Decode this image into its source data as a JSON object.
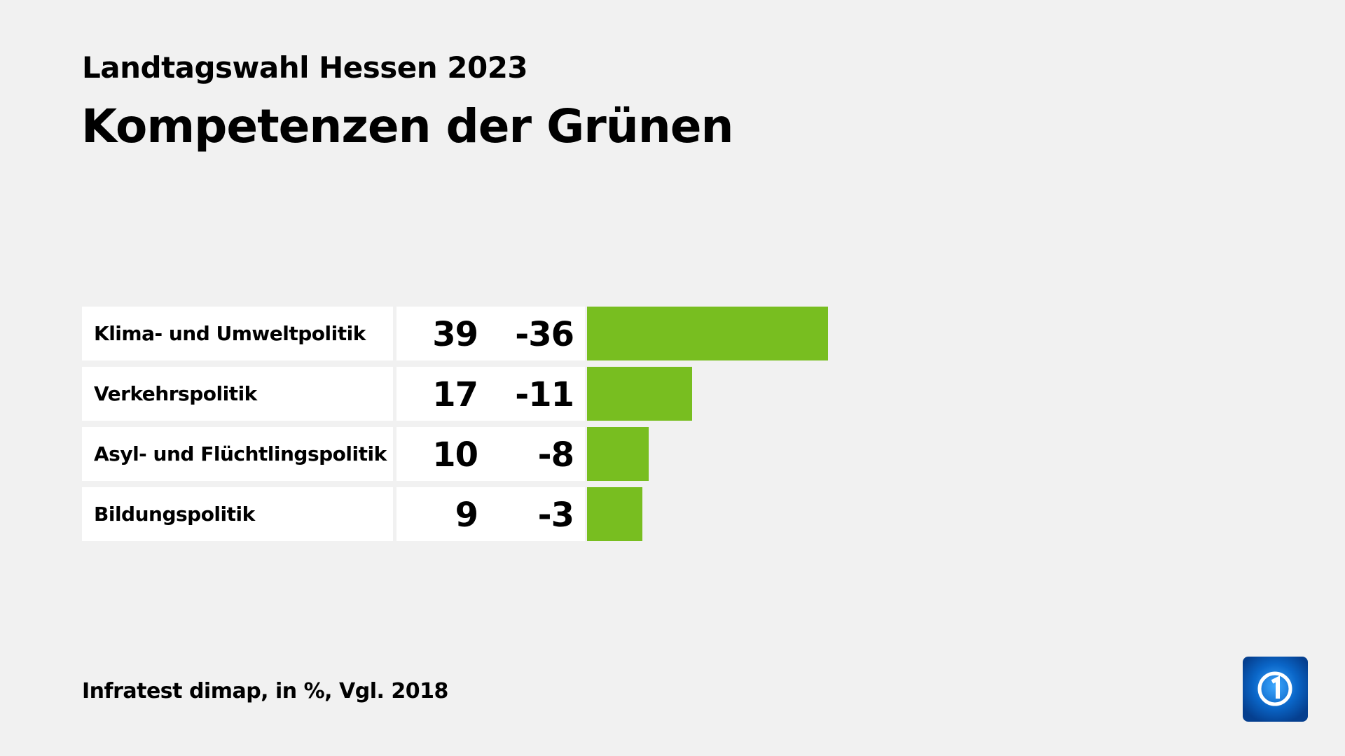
{
  "header": {
    "subtitle": "Landtagswahl Hessen 2023",
    "title": "Kompetenzen der Grünen"
  },
  "footer": {
    "source": "Infratest dimap, in %, Vgl. 2018"
  },
  "logo": {
    "name": "ard-das-erste-logo",
    "text": "1"
  },
  "colors": {
    "bar": "#78be20",
    "background": "#f1f1f1"
  },
  "chart_data": {
    "type": "bar",
    "orientation": "horizontal",
    "categories": [
      "Klima- und Umweltpolitik",
      "Verkehrspolitik",
      "Asyl- und Flüchtlingspolitik",
      "Bildungspolitik"
    ],
    "values": [
      39,
      17,
      10,
      9
    ],
    "changes": [
      "-36",
      "-11",
      "-8",
      "-3"
    ],
    "title": "Kompetenzen der Grünen",
    "subtitle": "Landtagswahl Hessen 2023"
  }
}
